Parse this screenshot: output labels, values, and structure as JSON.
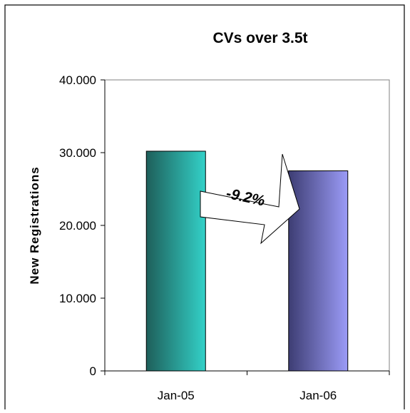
{
  "chart_data": {
    "type": "bar",
    "title": "CVs over 3.5t",
    "ylabel": "New Registrations",
    "xlabel": "",
    "categories": [
      "Jan-05",
      "Jan-06"
    ],
    "values": [
      30200,
      27500
    ],
    "ylim": [
      0,
      40000
    ],
    "yticks": [
      0,
      10000,
      20000,
      30000,
      40000
    ],
    "ytick_labels": [
      "0",
      "10.000",
      "20.000",
      "30.000",
      "40.000"
    ],
    "annotation": "-9.2%",
    "grid": false,
    "legend": "none",
    "colors": {
      "bar1_dark": "#1e5f5a",
      "bar1_light": "#33d1c8",
      "bar2_dark": "#3d3d73",
      "bar2_light": "#9b9bf7",
      "plot_border": "#808080",
      "frame": "#000000"
    }
  }
}
